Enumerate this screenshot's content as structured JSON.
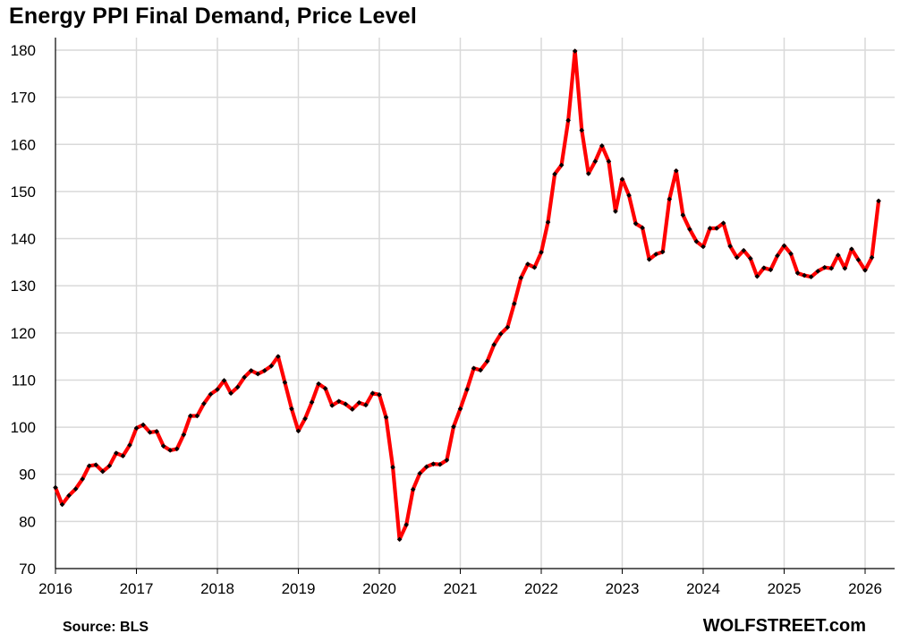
{
  "chart_data": {
    "type": "line",
    "title": "Energy PPI Final Demand, Price Level",
    "source": "Source: BLS",
    "brand": "WOLFSTREET.com",
    "xlabel": "",
    "ylabel": "",
    "ylim": [
      70,
      180
    ],
    "yticks": [
      70,
      80,
      90,
      100,
      110,
      120,
      130,
      140,
      150,
      160,
      170,
      180
    ],
    "xticks": [
      "2016",
      "2017",
      "2018",
      "2019",
      "2020",
      "2021",
      "2022",
      "2023",
      "2024",
      "2025",
      "2026"
    ],
    "grid": true,
    "legend": "none",
    "line_color": "#ff0000",
    "marker_color": "#000000",
    "x_start": "2016-01",
    "series": [
      {
        "values": [
          87.2,
          83.6,
          85.5,
          86.9,
          89.0,
          91.8,
          92.0,
          90.6,
          91.8,
          94.5,
          93.9,
          96.2,
          99.8,
          100.5,
          98.9,
          99.1,
          96.0,
          95.1,
          95.4,
          98.4,
          102.4,
          102.4,
          105.0,
          107.0,
          108.0,
          109.9,
          107.2,
          108.5,
          110.6,
          112.0,
          111.3,
          112.0,
          113.0,
          115.0,
          109.5,
          103.9,
          99.2,
          101.8,
          105.3,
          109.2,
          108.2,
          104.6,
          105.5,
          104.9,
          103.8,
          105.2,
          104.7,
          107.2,
          106.9,
          102.1,
          91.5,
          76.2,
          79.3,
          86.8,
          90.2,
          91.6,
          92.2,
          92.1,
          93.0,
          100.1,
          103.9,
          108.0,
          112.5,
          112.1,
          114.0,
          117.5,
          119.8,
          121.2,
          126.2,
          131.7,
          134.6,
          133.9,
          137.1,
          143.5,
          153.7,
          155.6,
          165.1,
          179.8,
          163.0,
          153.8,
          156.4,
          159.7,
          156.4,
          145.8,
          152.6,
          149.2,
          143.2,
          142.3,
          135.6,
          136.7,
          137.2,
          148.4,
          154.4,
          145.0,
          142.0,
          139.4,
          138.3,
          142.2,
          142.2,
          143.3,
          138.4,
          136.0,
          137.5,
          135.8,
          132.0,
          133.8,
          133.4,
          136.4,
          138.5,
          136.8,
          132.7,
          132.2,
          131.9,
          133.1,
          133.9,
          133.7,
          136.5,
          133.7,
          137.8,
          135.5,
          133.3,
          136.0,
          148.0
        ]
      }
    ]
  }
}
